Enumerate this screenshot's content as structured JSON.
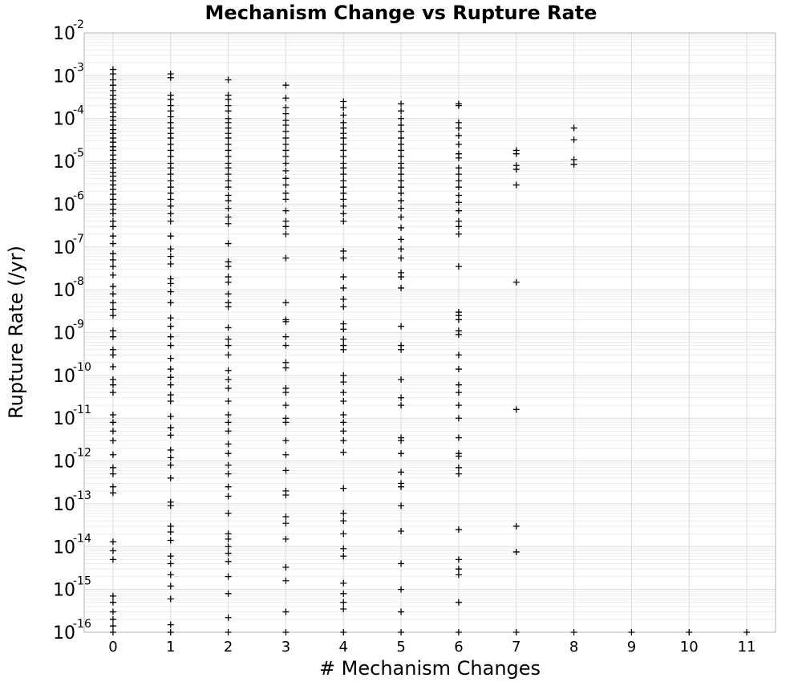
{
  "chart_data": {
    "type": "scatter",
    "title": "Mechanism Change vs Rupture Rate",
    "xlabel": "# Mechanism Changes",
    "ylabel": "Rupture Rate (/yr)",
    "xlim": [
      -0.5,
      11.5
    ],
    "ylim": [
      1e-16,
      0.01
    ],
    "yscale": "log",
    "marker": "plus",
    "marker_color": "#000000",
    "grid": true,
    "x_ticks": [
      0,
      1,
      2,
      3,
      4,
      5,
      6,
      7,
      8,
      9,
      10,
      11
    ],
    "y_ticks": [
      {
        "base": "10",
        "exp": "-2",
        "value": 0.01
      },
      {
        "base": "10",
        "exp": "-3",
        "value": 0.001
      },
      {
        "base": "10",
        "exp": "-4",
        "value": 0.0001
      },
      {
        "base": "10",
        "exp": "-5",
        "value": 1e-05
      },
      {
        "base": "10",
        "exp": "-6",
        "value": 1e-06
      },
      {
        "base": "10",
        "exp": "-7",
        "value": 1e-07
      },
      {
        "base": "10",
        "exp": "-8",
        "value": 1e-08
      },
      {
        "base": "10",
        "exp": "-9",
        "value": 1e-09
      },
      {
        "base": "10",
        "exp": "-10",
        "value": 1e-10
      },
      {
        "base": "10",
        "exp": "-11",
        "value": 1e-11
      },
      {
        "base": "10",
        "exp": "-12",
        "value": 1e-12
      },
      {
        "base": "10",
        "exp": "-13",
        "value": 1e-13
      },
      {
        "base": "10",
        "exp": "-14",
        "value": 1e-14
      },
      {
        "base": "10",
        "exp": "-15",
        "value": 1e-15
      },
      {
        "base": "10",
        "exp": "-16",
        "value": 1e-16
      }
    ],
    "series": [
      {
        "x": 0,
        "y": [
          0.0014,
          0.0011,
          0.0008,
          0.0006,
          0.00045,
          0.00035,
          0.00028,
          0.00022,
          0.00018,
          0.00014,
          0.00011,
          9e-05,
          7e-05,
          5.5e-05,
          4.5e-05,
          3.5e-05,
          2.8e-05,
          2.2e-05,
          1.8e-05,
          1.4e-05,
          1.1e-05,
          9e-06,
          7e-06,
          5.5e-06,
          4.5e-06,
          3.5e-06,
          2.8e-06,
          2.2e-06,
          1.7e-06,
          1.3e-06,
          1e-06,
          7.5e-07,
          6e-07,
          4e-07,
          3e-07,
          1.8e-07,
          1.2e-07,
          7e-08,
          5e-08,
          3.5e-08,
          2.2e-08,
          1.2e-08,
          8e-09,
          5e-09,
          3.5e-09,
          2.5e-09,
          1.1e-09,
          8e-10,
          4e-10,
          3e-10,
          1.6e-10,
          8e-11,
          6e-11,
          4e-11,
          1.2e-11,
          8e-12,
          5e-12,
          3e-12,
          1.4e-12,
          7e-13,
          5e-13,
          2.5e-13,
          1.8e-13,
          1.3e-14,
          8e-15,
          5e-15,
          7e-16,
          5e-16,
          3e-16,
          2e-16,
          1.4e-16,
          1e-16
        ]
      },
      {
        "x": 1,
        "y": [
          0.0011,
          0.0009,
          0.00035,
          0.00028,
          0.0002,
          0.00015,
          0.00011,
          8e-05,
          6e-05,
          4.5e-05,
          3.5e-05,
          2.5e-05,
          1.8e-05,
          1.3e-05,
          9e-06,
          7e-06,
          5e-06,
          3.5e-06,
          2.5e-06,
          1.8e-06,
          1.3e-06,
          9e-07,
          6e-07,
          4e-07,
          1.8e-07,
          9e-08,
          6e-08,
          4e-08,
          1.8e-08,
          1.4e-08,
          9e-09,
          5e-09,
          2.2e-09,
          1.4e-09,
          8e-10,
          5e-10,
          2.5e-10,
          1.4e-10,
          9e-11,
          6e-11,
          3.5e-11,
          2.5e-11,
          1.1e-11,
          6e-12,
          4e-12,
          1.8e-12,
          1.2e-12,
          8e-13,
          4e-13,
          1.1e-13,
          9e-14,
          3e-14,
          2.2e-14,
          1.4e-14,
          6e-15,
          4e-15,
          2.2e-15,
          1.2e-15,
          6e-16,
          1.5e-16,
          1e-16
        ]
      },
      {
        "x": 2,
        "y": [
          0.0008,
          0.00035,
          0.00028,
          0.0002,
          0.00015,
          0.0001,
          8e-05,
          6e-05,
          4.5e-05,
          3.5e-05,
          2.5e-05,
          1.8e-05,
          1.3e-05,
          9e-06,
          7e-06,
          5e-06,
          3.5e-06,
          2.5e-06,
          1.6e-06,
          1.2e-06,
          8e-07,
          5e-07,
          3.5e-07,
          1.2e-07,
          4.5e-08,
          3.5e-08,
          2e-08,
          1.5e-08,
          8e-09,
          5e-09,
          4e-09,
          1.3e-09,
          7e-10,
          5e-10,
          3e-10,
          1.3e-10,
          8e-11,
          5e-11,
          2.5e-11,
          1.2e-11,
          8e-12,
          5e-12,
          2.5e-12,
          1.5e-12,
          8e-13,
          5e-13,
          2.5e-13,
          1.5e-13,
          6e-14,
          2e-14,
          1.5e-14,
          1e-14,
          7e-15,
          4.5e-15,
          2e-15,
          8e-16,
          2.2e-16,
          1e-16
        ]
      },
      {
        "x": 3,
        "y": [
          0.0006,
          0.0003,
          0.00018,
          0.00013,
          9e-05,
          7e-05,
          5e-05,
          3.5e-05,
          2.5e-05,
          1.8e-05,
          1.3e-05,
          9e-06,
          6e-06,
          4e-06,
          2.8e-06,
          1.8e-06,
          1.3e-06,
          7e-07,
          4e-07,
          3e-07,
          2e-07,
          5.5e-08,
          5e-09,
          2e-09,
          1.8e-09,
          8e-10,
          5e-10,
          2e-10,
          1.5e-10,
          5e-11,
          4e-11,
          2e-11,
          1e-11,
          8e-12,
          3e-12,
          1.4e-12,
          6e-13,
          2e-13,
          1.6e-13,
          5e-14,
          3.5e-14,
          1.5e-14,
          3.3e-15,
          1.6e-15,
          3e-16,
          1e-16
        ]
      },
      {
        "x": 4,
        "y": [
          0.00025,
          0.00018,
          0.00012,
          8e-05,
          6e-05,
          4.5e-05,
          3.5e-05,
          2.5e-05,
          1.8e-05,
          1.3e-05,
          9e-06,
          7e-06,
          5e-06,
          3.5e-06,
          2.5e-06,
          1.8e-06,
          1.3e-06,
          9e-07,
          6e-07,
          4e-07,
          8e-08,
          5.5e-08,
          2e-08,
          1.1e-08,
          6e-09,
          4e-09,
          1.6e-09,
          1.2e-09,
          7e-10,
          5e-10,
          4e-10,
          1e-10,
          7e-11,
          4e-11,
          2.5e-11,
          1.2e-11,
          8e-12,
          5e-12,
          3e-12,
          1.6e-12,
          2.3e-13,
          6e-14,
          4e-14,
          2e-14,
          9e-15,
          6e-15,
          1.4e-15,
          8e-16,
          5e-16,
          3.5e-16,
          1e-16
        ]
      },
      {
        "x": 5,
        "y": [
          0.00022,
          0.00015,
          0.0001,
          7e-05,
          5e-05,
          3.5e-05,
          2.5e-05,
          1.8e-05,
          1.3e-05,
          9e-06,
          7e-06,
          5e-06,
          3.5e-06,
          2.5e-06,
          1.8e-06,
          1.2e-06,
          8e-07,
          5e-07,
          2.8e-07,
          1.5e-07,
          9e-08,
          5.5e-08,
          2.5e-08,
          2e-08,
          1.1e-08,
          1.4e-09,
          5e-10,
          4e-10,
          8e-11,
          3e-11,
          2e-11,
          3.5e-12,
          3e-12,
          1.5e-12,
          5.5e-13,
          3e-13,
          2.5e-13,
          9e-14,
          2.3e-14,
          4e-15,
          1e-15,
          3e-16,
          1e-16
        ]
      },
      {
        "x": 6,
        "y": [
          0.00022,
          0.0002,
          8e-05,
          6e-05,
          4e-05,
          2.5e-05,
          1.5e-05,
          1.2e-05,
          7e-06,
          5e-06,
          3.5e-06,
          2.5e-06,
          1.6e-06,
          1.1e-06,
          7e-07,
          4e-07,
          3e-07,
          2e-07,
          3.5e-08,
          3e-09,
          2.5e-09,
          2e-09,
          1.1e-09,
          9e-10,
          3e-10,
          1.4e-10,
          6e-11,
          4e-11,
          2e-11,
          1e-11,
          3.5e-12,
          1.5e-12,
          1.3e-12,
          7e-13,
          5e-13,
          2.5e-14,
          5e-15,
          3e-15,
          2.2e-15,
          5e-16,
          1e-16
        ]
      },
      {
        "x": 7,
        "y": [
          1.8e-05,
          1.5e-05,
          8e-06,
          6.5e-06,
          2.8e-06,
          1.5e-08,
          1.6e-11,
          3e-14,
          7.5e-15,
          1e-16
        ]
      },
      {
        "x": 8,
        "y": [
          6e-05,
          3.2e-05,
          1.1e-05,
          8.5e-06,
          1e-16
        ]
      },
      {
        "x": 9,
        "y": [
          1e-16
        ]
      },
      {
        "x": 10,
        "y": [
          1e-16
        ]
      },
      {
        "x": 11,
        "y": [
          1e-16
        ]
      }
    ]
  }
}
